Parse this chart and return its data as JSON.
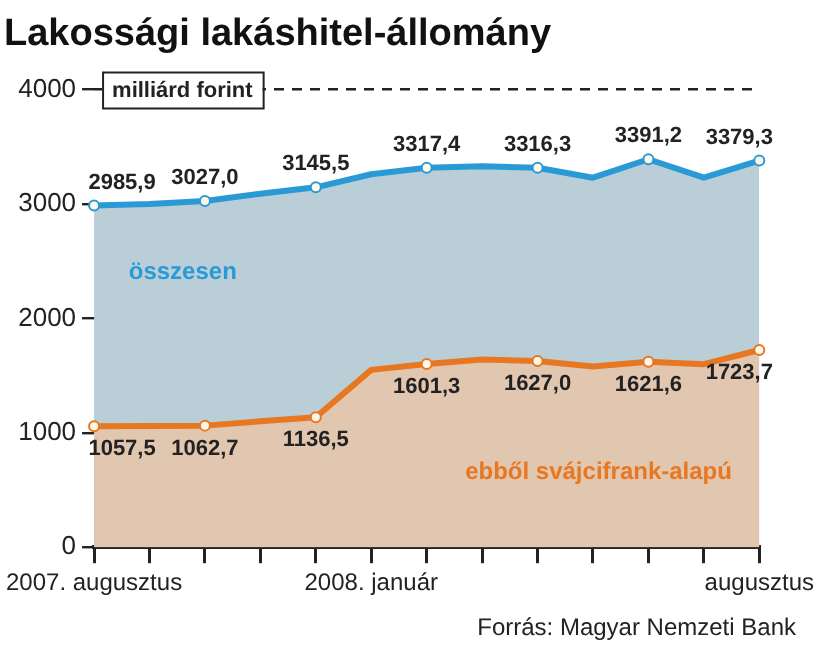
{
  "chart_data": {
    "type": "area",
    "title": "Lakossági lakáshitel-állomány",
    "ylabel": "milliárd forint",
    "categories": [
      "2007. augusztus",
      null,
      null,
      null,
      null,
      "2008. január",
      null,
      null,
      null,
      null,
      null,
      null,
      "augusztus"
    ],
    "series": [
      {
        "name": "összesen",
        "color": "#2a9ad6",
        "values": [
          2985.9,
          3000,
          3027.0,
          3090,
          3145.5,
          3260,
          3317.4,
          3330,
          3316.3,
          3230,
          3391.2,
          3230,
          3379.3
        ],
        "value_labels": [
          "2985,9",
          null,
          "3027,0",
          null,
          "3145,5",
          null,
          "3317,4",
          null,
          "3316,3",
          null,
          "3391,2",
          null,
          "3379,3"
        ]
      },
      {
        "name": "ebből svájcifrank-alapú",
        "color": "#e87722",
        "values": [
          1057.5,
          1060,
          1062.7,
          1100,
          1136.5,
          1550,
          1601.3,
          1640,
          1627.0,
          1580,
          1621.6,
          1600,
          1723.7
        ],
        "value_labels": [
          "1057,5",
          null,
          "1062,7",
          null,
          "1136,5",
          null,
          "1601,3",
          null,
          "1627,0",
          null,
          "1621,6",
          null,
          "1723,7"
        ]
      }
    ],
    "ylim": [
      0,
      4000
    ],
    "yticks": [
      0,
      1000,
      2000,
      3000,
      4000
    ],
    "grid": "y",
    "legend": false,
    "marker": "circle",
    "annotations": [
      "Forrás: Magyar Nemzeti Bank"
    ]
  }
}
